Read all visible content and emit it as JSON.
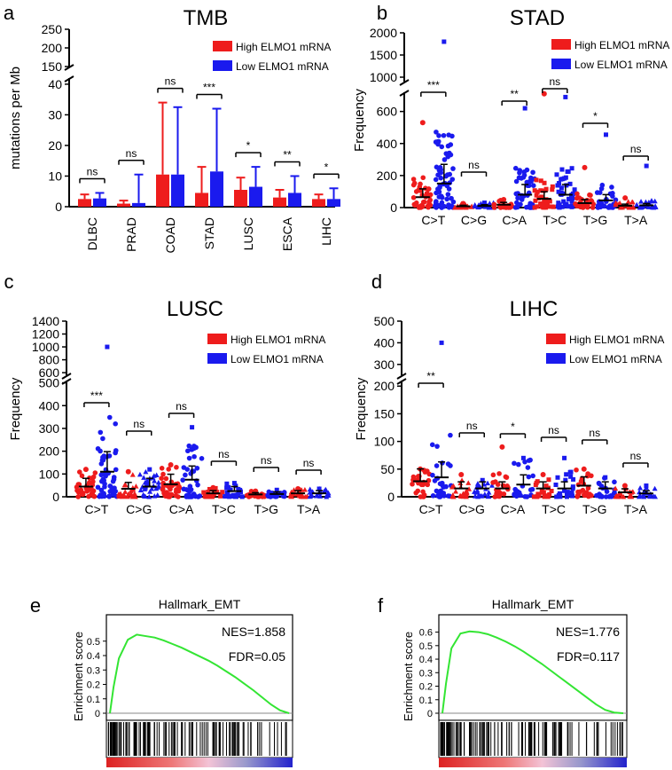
{
  "colors": {
    "high": "#ee1c1c",
    "low": "#1a1aee",
    "gsea_line": "#33e533"
  },
  "chart_data": [
    {
      "panel_label": "a",
      "type": "bar",
      "title": "TMB",
      "ylabel": "mutations per Mb",
      "categories": [
        "DLBC",
        "PRAD",
        "COAD",
        "STAD",
        "LUSC",
        "ESCA",
        "LIHC"
      ],
      "series": [
        {
          "name": "High ELMO1 mRNA",
          "values": [
            2.5,
            1.0,
            10.5,
            4.5,
            5.5,
            3.0,
            2.5
          ],
          "err_upper": [
            4.0,
            2.0,
            34.0,
            13.0,
            9.5,
            5.5,
            4.0
          ]
        },
        {
          "name": "Low ELMO1 mRNA",
          "values": [
            2.7,
            1.2,
            10.5,
            11.5,
            6.5,
            4.5,
            2.5
          ],
          "err_upper": [
            4.5,
            10.5,
            32.5,
            32.0,
            13.0,
            10.0,
            6.0
          ]
        }
      ],
      "y_ticks_lower": [
        "0",
        "10",
        "20",
        "30",
        "40"
      ],
      "y_ticks_upper": [
        "150",
        "200",
        "250"
      ],
      "ylim_lower": [
        0,
        42
      ],
      "ylim_upper": [
        150,
        250
      ],
      "significance": [
        "ns",
        "ns",
        "ns",
        "***",
        "*",
        "**",
        "*"
      ],
      "legend": [
        "High ELMO1 mRNA",
        "Low ELMO1 mRNA"
      ]
    },
    {
      "panel_label": "b",
      "type": "scatter",
      "title": "STAD",
      "ylabel": "Frequency",
      "categories": [
        "C>T",
        "C>G",
        "C>A",
        "T>C",
        "T>G",
        "T>A"
      ],
      "y_ticks_lower": [
        "0",
        "200",
        "400",
        "600"
      ],
      "y_ticks_upper": [
        "1000",
        "1500",
        "2000"
      ],
      "ylim_lower": [
        0,
        720
      ],
      "ylim_upper": [
        900,
        2000
      ],
      "high": {
        "means": [
          65,
          8,
          18,
          55,
          28,
          12
        ],
        "maxes": [
          530,
          25,
          50,
          710,
          250,
          60
        ]
      },
      "low": {
        "means": [
          150,
          10,
          80,
          80,
          45,
          14
        ],
        "maxes": [
          1800,
          30,
          620,
          690,
          455,
          260
        ]
      },
      "significance": [
        "***",
        "ns",
        "**",
        "ns",
        "*",
        "ns"
      ],
      "legend": [
        "High ELMO1 mRNA",
        "Low ELMO1 mRNA"
      ]
    },
    {
      "panel_label": "c",
      "type": "scatter",
      "title": "LUSC",
      "ylabel": "Frequency",
      "categories": [
        "C>T",
        "C>G",
        "C>A",
        "T>C",
        "T>G",
        "T>A"
      ],
      "y_ticks_lower": [
        "0",
        "100",
        "200",
        "300",
        "400",
        "500"
      ],
      "y_ticks_upper": [
        "600",
        "800",
        "1000",
        "1200",
        "1400"
      ],
      "ylim_lower": [
        0,
        510
      ],
      "ylim_upper": [
        560,
        1400
      ],
      "high": {
        "means": [
          45,
          35,
          55,
          15,
          10,
          15
        ],
        "maxes": [
          120,
          110,
          140,
          40,
          25,
          35
        ]
      },
      "low": {
        "means": [
          110,
          45,
          75,
          25,
          12,
          15
        ],
        "maxes": [
          1000,
          120,
          305,
          60,
          30,
          35
        ]
      },
      "significance": [
        "***",
        "ns",
        "ns",
        "ns",
        "ns",
        "ns"
      ],
      "legend": [
        "High ELMO1 mRNA",
        "Low ELMO1 mRNA"
      ]
    },
    {
      "panel_label": "d",
      "type": "scatter",
      "title": "LIHC",
      "ylabel": "Frequency",
      "categories": [
        "C>T",
        "C>G",
        "C>A",
        "T>C",
        "T>G",
        "T>A"
      ],
      "y_ticks_lower": [
        "0",
        "50",
        "100",
        "150",
        "200"
      ],
      "y_ticks_upper": [
        "300",
        "400",
        "500"
      ],
      "ylim_lower": [
        0,
        210
      ],
      "ylim_upper": [
        250,
        500
      ],
      "high": {
        "means": [
          28,
          15,
          15,
          15,
          20,
          8
        ],
        "maxes": [
          50,
          40,
          90,
          40,
          50,
          20
        ]
      },
      "low": {
        "means": [
          35,
          15,
          22,
          15,
          15,
          6
        ],
        "maxes": [
          400,
          30,
          70,
          70,
          35,
          20
        ]
      },
      "significance": [
        "**",
        "ns",
        "*",
        "ns",
        "ns",
        "ns"
      ],
      "legend": [
        "High ELMO1 mRNA",
        "Low ELMO1 mRNA"
      ]
    },
    {
      "panel_label": "e",
      "type": "line",
      "title": "Hallmark_EMT",
      "ylabel": "Enrichment score",
      "y_ticks": [
        "0",
        "0.1",
        "0.2",
        "0.3",
        "0.4",
        "0.5"
      ],
      "ylim": [
        0,
        0.56
      ],
      "x": [
        0,
        0.02,
        0.05,
        0.1,
        0.15,
        0.2,
        0.25,
        0.3,
        0.35,
        0.4,
        0.45,
        0.5,
        0.55,
        0.6,
        0.65,
        0.7,
        0.75,
        0.8,
        0.85,
        0.9,
        0.95,
        1.0
      ],
      "y": [
        0,
        0.18,
        0.38,
        0.51,
        0.545,
        0.535,
        0.525,
        0.505,
        0.48,
        0.455,
        0.425,
        0.395,
        0.365,
        0.33,
        0.29,
        0.25,
        0.205,
        0.16,
        0.11,
        0.06,
        0.02,
        0
      ],
      "stats": [
        "NES=1.858",
        "FDR=0.05"
      ]
    },
    {
      "panel_label": "f",
      "type": "line",
      "title": "Hallmark_EMT",
      "ylabel": "Enrichment score",
      "y_ticks": [
        "0",
        "0.1",
        "0.2",
        "0.3",
        "0.4",
        "0.5",
        "0.6"
      ],
      "ylim": [
        0,
        0.63
      ],
      "x": [
        0,
        0.02,
        0.05,
        0.1,
        0.15,
        0.2,
        0.25,
        0.3,
        0.35,
        0.4,
        0.45,
        0.5,
        0.55,
        0.6,
        0.65,
        0.7,
        0.75,
        0.8,
        0.85,
        0.9,
        0.95,
        1.0
      ],
      "y": [
        0,
        0.22,
        0.48,
        0.59,
        0.605,
        0.6,
        0.585,
        0.56,
        0.53,
        0.495,
        0.455,
        0.41,
        0.365,
        0.315,
        0.265,
        0.215,
        0.165,
        0.115,
        0.065,
        0.025,
        0.005,
        0
      ],
      "stats": [
        "NES=1.776",
        "FDR=0.117"
      ]
    }
  ]
}
